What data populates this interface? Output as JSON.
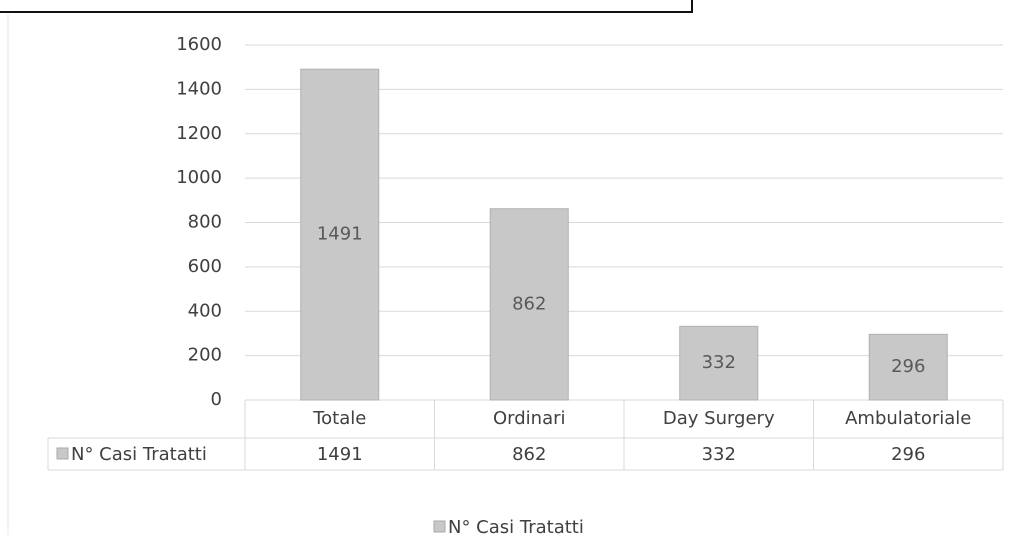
{
  "chart_data": {
    "type": "bar",
    "categories": [
      "Totale",
      "Ordinari",
      "Day Surgery",
      "Ambulatoriale"
    ],
    "series": [
      {
        "name": "N° Casi Tratatti",
        "color": "#c8c8c8",
        "values": [
          1491,
          862,
          332,
          296
        ]
      }
    ],
    "ylim": [
      0,
      1600
    ],
    "yticks": [
      0,
      200,
      400,
      600,
      800,
      1000,
      1200,
      1400,
      1600
    ],
    "grid": true,
    "data_table": true,
    "legend": "bottom"
  }
}
